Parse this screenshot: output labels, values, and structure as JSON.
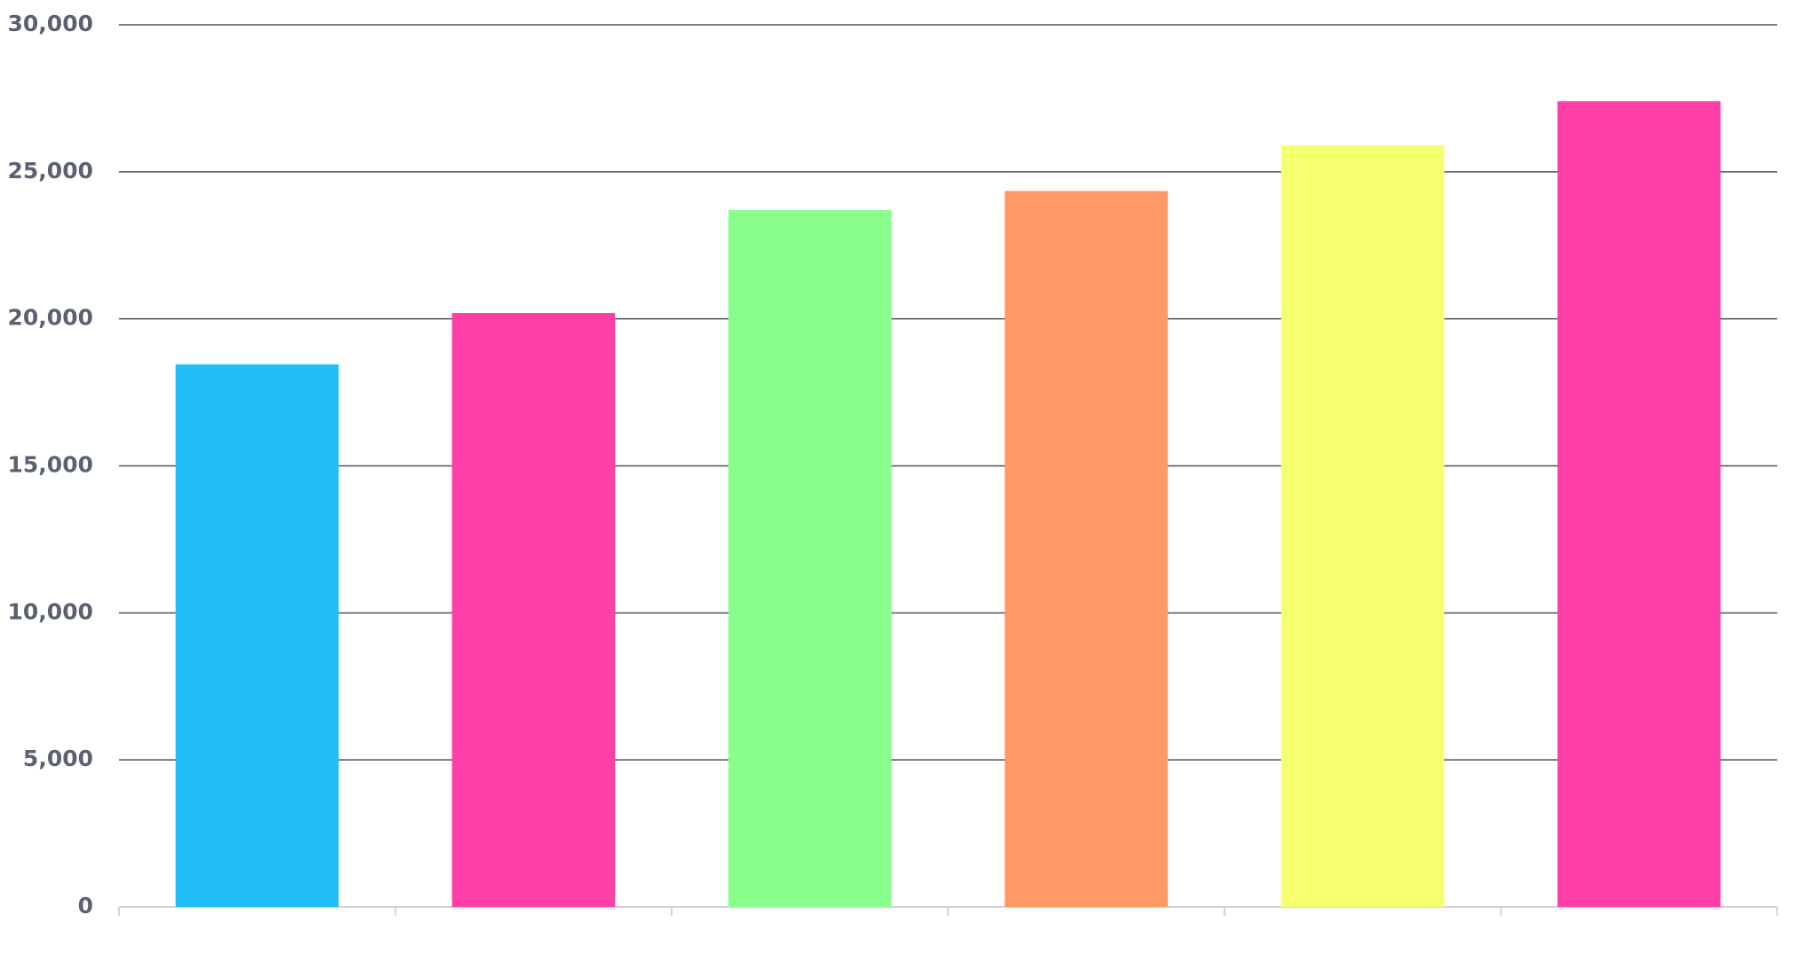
{
  "chart_data": {
    "type": "bar",
    "categories": [
      null,
      null,
      null,
      null,
      null,
      null
    ],
    "values": [
      18450,
      20200,
      23700,
      24350,
      25900,
      27400
    ],
    "colors": [
      "#22bef5",
      "#ff3fa7",
      "#88ff8c",
      "#ff9a68",
      "#f6ff6e",
      "#ff3fa7"
    ],
    "ylim": [
      0,
      30000
    ],
    "yticks": [
      0,
      {
        "value": 5000,
        "label": "5,000"
      },
      {
        "value": 10000,
        "label": "10,000"
      },
      {
        "value": 15000,
        "label": "15,000"
      },
      {
        "value": 20000,
        "label": "20,000"
      },
      {
        "value": 25000,
        "label": "25,000"
      },
      {
        "value": 30000,
        "label": "30,000"
      }
    ],
    "grid": true
  }
}
